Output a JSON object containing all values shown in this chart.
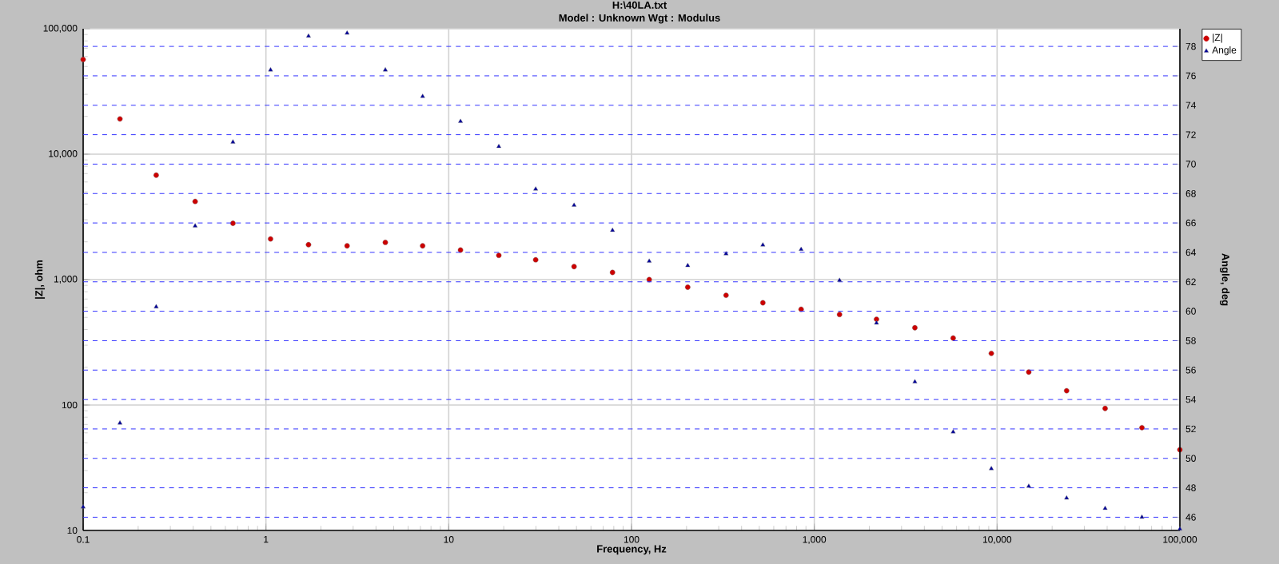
{
  "chart_data": {
    "type": "scatter",
    "title": "H:\\40LA.txt",
    "subtitle": "Model : Unknown    Wgt : Modulus",
    "xlabel": "Frequency, Hz",
    "ylabel": "|Z|, ohm",
    "y2label": "Angle, deg",
    "x": [
      0.1,
      0.159,
      0.251,
      0.41,
      0.66,
      1.06,
      1.71,
      2.78,
      4.5,
      7.2,
      11.6,
      18.8,
      29.9,
      48.5,
      78.7,
      125,
      203,
      329,
      523,
      847,
      1374,
      2189,
      3550,
      5750,
      9300,
      14900,
      24000,
      39000,
      62000,
      100000
    ],
    "series": [
      {
        "name": "|Z|",
        "color": "#cc0000",
        "marker": "circle",
        "values": [
          56800,
          19100,
          6800,
          4200,
          2810,
          2110,
          1900,
          1860,
          1980,
          1860,
          1720,
          1560,
          1440,
          1270,
          1140,
          1000,
          870,
          750,
          653,
          580,
          527,
          483,
          413,
          342,
          258,
          183,
          130,
          94,
          66,
          44
        ]
      },
      {
        "name": "Angle",
        "color": "#000099",
        "marker": "triangle",
        "axis": "y2",
        "values": [
          46.7,
          52.4,
          60.3,
          65.8,
          71.5,
          76.4,
          78.7,
          78.9,
          76.4,
          74.6,
          72.9,
          71.2,
          68.3,
          67.2,
          65.5,
          63.4,
          63.1,
          63.9,
          64.5,
          64.2,
          62.1,
          59.2,
          55.2,
          51.8,
          49.3,
          48.1,
          47.3,
          46.6,
          46.0,
          45.2
        ]
      }
    ],
    "log": "xy",
    "xlim": [
      0.1,
      100000
    ],
    "xticks": [
      {
        "value": 0.1,
        "label": "0.1"
      },
      {
        "value": 1,
        "label": "1"
      },
      {
        "value": 10,
        "label": "10"
      },
      {
        "value": 100,
        "label": "100"
      },
      {
        "value": 1000,
        "label": "1,000"
      },
      {
        "value": 10000,
        "label": "10,000"
      },
      {
        "value": 100000,
        "label": "100,000"
      }
    ],
    "ylim": [
      10,
      100000
    ],
    "yticks": [
      {
        "value": 10,
        "label": "10"
      },
      {
        "value": 100,
        "label": "100"
      },
      {
        "value": 1000,
        "label": "1,000"
      },
      {
        "value": 10000,
        "label": "10,000"
      },
      {
        "value": 100000,
        "label": "100,000"
      }
    ],
    "y2lim": [
      45.1,
      79.2
    ],
    "y2ticks": [
      46,
      48,
      50,
      52,
      54,
      56,
      58,
      60,
      62,
      64,
      66,
      68,
      70,
      72,
      74,
      76,
      78
    ],
    "grid": true,
    "legend": "top right"
  }
}
